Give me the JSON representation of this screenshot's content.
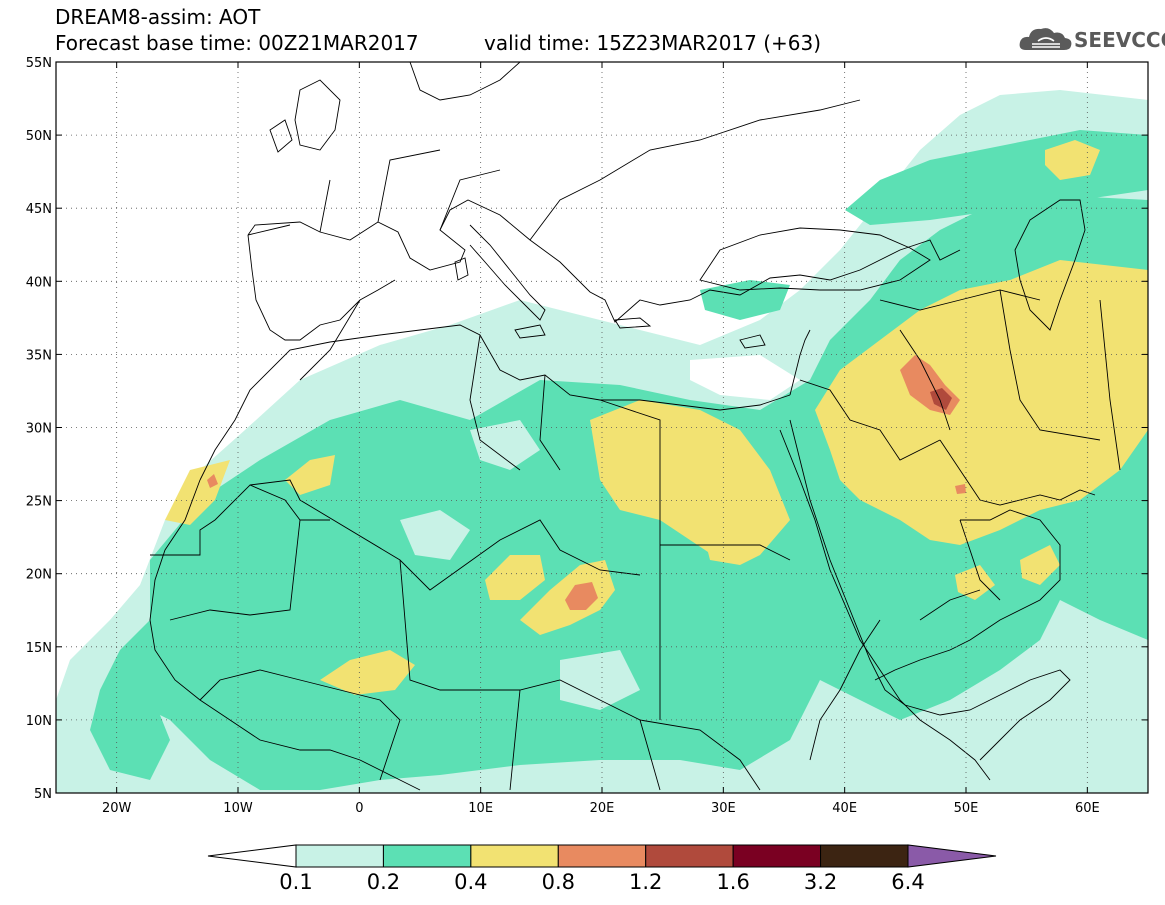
{
  "header": {
    "line1": "DREAM8-assim: AOT",
    "line2": "Forecast base time: 00Z21MAR2017",
    "line3": "valid time: 15Z23MAR2017 (+63)",
    "logo_text": "SEEVCCC"
  },
  "map": {
    "lon_range": [
      -25,
      65
    ],
    "lat_range": [
      5,
      55
    ],
    "lon_ticks": [
      {
        "lon": -20,
        "label": "20W"
      },
      {
        "lon": -10,
        "label": "10W"
      },
      {
        "lon": 0,
        "label": "0"
      },
      {
        "lon": 10,
        "label": "10E"
      },
      {
        "lon": 20,
        "label": "20E"
      },
      {
        "lon": 30,
        "label": "30E"
      },
      {
        "lon": 40,
        "label": "40E"
      },
      {
        "lon": 50,
        "label": "50E"
      },
      {
        "lon": 60,
        "label": "60E"
      }
    ],
    "lat_ticks": [
      {
        "lat": 5,
        "label": "5N"
      },
      {
        "lat": 10,
        "label": "10N"
      },
      {
        "lat": 15,
        "label": "15N"
      },
      {
        "lat": 20,
        "label": "20N"
      },
      {
        "lat": 25,
        "label": "25N"
      },
      {
        "lat": 30,
        "label": "30N"
      },
      {
        "lat": 35,
        "label": "35N"
      },
      {
        "lat": 40,
        "label": "40N"
      },
      {
        "lat": 45,
        "label": "45N"
      },
      {
        "lat": 50,
        "label": "50N"
      },
      {
        "lat": 55,
        "label": "55N"
      }
    ]
  },
  "colorbar": {
    "colors": [
      "#c8f2e6",
      "#5ce0b4",
      "#f2e272",
      "#e88a60",
      "#b04a3c",
      "#7a0022",
      "#3c2412"
    ],
    "under_color": "#ffffff",
    "over_color": "#8a5aa8",
    "labels": [
      "0.1",
      "0.2",
      "0.4",
      "0.8",
      "1.2",
      "1.6",
      "3.2",
      "6.4"
    ]
  }
}
